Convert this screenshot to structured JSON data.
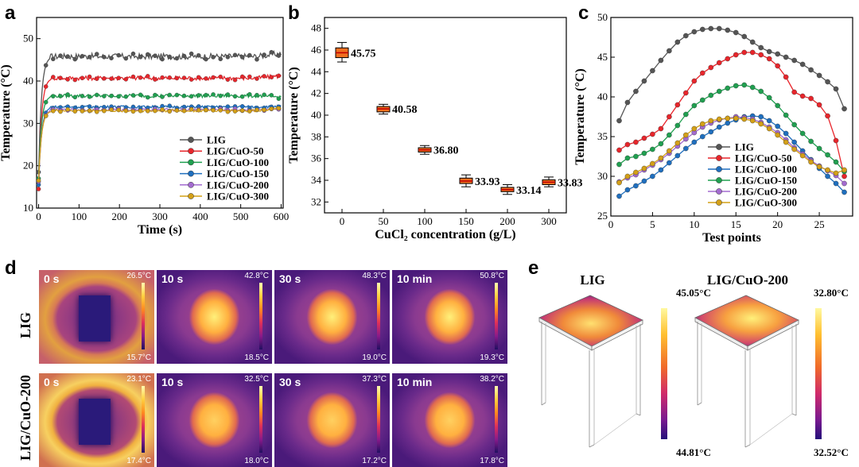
{
  "panel_labels": {
    "a": "a",
    "b": "b",
    "c": "c",
    "d": "d",
    "e": "e"
  },
  "colors": {
    "LIG": "#555555",
    "LIG/CuO-50": "#e8252b",
    "LIG/CuO-100": "#20a050",
    "LIG/CuO-150": "#1f6fbf",
    "LIG/CuO-200": "#a36bd0",
    "LIG/CuO-300": "#d4a017"
  },
  "chart_data": [
    {
      "id": "a",
      "type": "line",
      "xlabel": "Time (s)",
      "ylabel": "Temperature (°C)",
      "xlim": [
        -5,
        605
      ],
      "ylim": [
        10,
        55
      ],
      "xticks": [
        0,
        100,
        200,
        300,
        400,
        500,
        600
      ],
      "yticks": [
        10,
        20,
        30,
        40,
        50
      ],
      "yticks_labels": [
        "10",
        "20",
        "30",
        "40",
        "50"
      ],
      "legend": [
        "LIG",
        "LIG/CuO-50",
        "LIG/CuO-100",
        "LIG/CuO-150",
        "LIG/CuO-200",
        "LIG/CuO-300"
      ],
      "series": [
        {
          "name": "LIG",
          "start": 18.5,
          "plateau": 45.8,
          "noise": 0.7,
          "end": 46.5
        },
        {
          "name": "LIG/CuO-50",
          "start": 14.5,
          "plateau": 40.7,
          "noise": 0.5,
          "end": 41.2
        },
        {
          "name": "LIG/CuO-100",
          "start": 17.0,
          "plateau": 36.5,
          "noise": 0.4,
          "end": 36.2
        },
        {
          "name": "LIG/CuO-150",
          "start": 15.5,
          "plateau": 33.9,
          "noise": 0.3,
          "end": 34.0
        },
        {
          "name": "LIG/CuO-200",
          "start": 16.2,
          "plateau": 33.2,
          "noise": 0.3,
          "end": 33.1
        },
        {
          "name": "LIG/CuO-300",
          "start": 16.5,
          "plateau": 33.0,
          "noise": 0.3,
          "end": 33.8
        }
      ]
    },
    {
      "id": "b",
      "type": "box",
      "xlabel": "CuCl₂ concentration (g/L)",
      "ylabel": "Temperature (°C)",
      "xlim": [
        -30,
        330
      ],
      "ylim": [
        31,
        49
      ],
      "xticks": [
        0,
        50,
        100,
        150,
        200,
        300
      ],
      "yticks": [
        32,
        34,
        36,
        38,
        40,
        42,
        44,
        46,
        48
      ],
      "boxes": [
        {
          "x": 0,
          "mean": 45.75,
          "label": "45.75",
          "q1": 45.3,
          "q3": 46.2,
          "min": 44.9,
          "max": 46.7
        },
        {
          "x": 50,
          "mean": 40.58,
          "label": "40.58",
          "q1": 40.3,
          "q3": 40.8,
          "min": 40.1,
          "max": 41.0
        },
        {
          "x": 100,
          "mean": 36.8,
          "label": "36.80",
          "q1": 36.6,
          "q3": 37.0,
          "min": 36.4,
          "max": 37.2
        },
        {
          "x": 150,
          "mean": 33.93,
          "label": "33.93",
          "q1": 33.7,
          "q3": 34.2,
          "min": 33.4,
          "max": 34.5
        },
        {
          "x": 200,
          "mean": 33.14,
          "label": "33.14",
          "q1": 32.95,
          "q3": 33.35,
          "min": 32.7,
          "max": 33.6
        },
        {
          "x": 300,
          "mean": 33.83,
          "label": "33.83",
          "q1": 33.6,
          "q3": 34.05,
          "min": 33.4,
          "max": 34.3
        }
      ]
    },
    {
      "id": "c",
      "type": "line",
      "xlabel": "Test points",
      "ylabel": "Temperature (°C)",
      "xlim": [
        0,
        29
      ],
      "ylim": [
        25,
        50
      ],
      "xticks": [
        0,
        5,
        10,
        15,
        20,
        25
      ],
      "yticks": [
        25,
        30,
        35,
        40,
        45,
        50
      ],
      "legend": [
        "LIG",
        "LIG/CuO-50",
        "LIG/CuO-100",
        "LIG/CuO-150",
        "LIG/CuO-200",
        "LIG/CuO-300"
      ],
      "legend_colors": [
        "#555555",
        "#e8252b",
        "#1f6fbf",
        "#20a050",
        "#a36bd0",
        "#d4a017"
      ],
      "series": [
        {
          "name": "LIG",
          "color": "#555555",
          "values": [
            37.0,
            39.3,
            40.7,
            42.0,
            43.3,
            44.6,
            45.8,
            46.9,
            47.7,
            48.2,
            48.5,
            48.6,
            48.6,
            48.4,
            48.1,
            47.6,
            46.9,
            46.2,
            45.7,
            45.4,
            45.0,
            44.6,
            44.1,
            43.4,
            42.7,
            41.9,
            41.0,
            38.5
          ]
        },
        {
          "name": "LIG/CuO-50",
          "color": "#e8252b",
          "values": [
            33.3,
            34.0,
            34.3,
            34.8,
            35.3,
            36.0,
            37.5,
            39.0,
            40.5,
            42.0,
            43.0,
            43.7,
            44.3,
            44.8,
            45.3,
            45.6,
            45.6,
            45.3,
            44.8,
            43.9,
            42.5,
            40.6,
            40.1,
            39.8,
            39.0,
            37.6,
            34.5,
            30.0
          ]
        },
        {
          "name": "LIG/CuO-150",
          "color": "#20a050",
          "values": [
            31.5,
            32.3,
            32.5,
            32.9,
            33.4,
            34.1,
            35.2,
            36.4,
            37.8,
            38.9,
            39.6,
            40.2,
            40.7,
            41.1,
            41.4,
            41.5,
            41.2,
            40.7,
            39.9,
            38.9,
            37.7,
            36.5,
            35.4,
            34.4,
            33.5,
            32.7,
            31.8,
            30.6
          ]
        },
        {
          "name": "LIG/CuO-100",
          "color": "#1f6fbf",
          "values": [
            27.5,
            28.3,
            28.8,
            29.4,
            30.0,
            30.8,
            31.7,
            32.6,
            33.5,
            34.3,
            35.0,
            35.6,
            36.2,
            36.7,
            37.1,
            37.5,
            37.6,
            37.5,
            37.0,
            36.3,
            35.4,
            34.3,
            33.2,
            32.1,
            31.0,
            30.0,
            29.1,
            28.0
          ]
        },
        {
          "name": "LIG/CuO-200",
          "color": "#a36bd0",
          "values": [
            29.3,
            29.8,
            30.2,
            30.8,
            31.4,
            32.1,
            32.9,
            33.8,
            34.7,
            35.5,
            36.2,
            36.7,
            37.1,
            37.3,
            37.5,
            37.4,
            37.2,
            36.8,
            36.2,
            35.5,
            34.6,
            33.6,
            32.8,
            32.0,
            31.3,
            30.7,
            30.1,
            29.1
          ]
        },
        {
          "name": "LIG/CuO-300",
          "color": "#d4a017",
          "values": [
            29.2,
            30.0,
            30.5,
            31.0,
            31.6,
            32.3,
            33.2,
            34.2,
            35.2,
            36.0,
            36.6,
            37.0,
            37.2,
            37.3,
            37.3,
            37.2,
            37.0,
            36.6,
            36.0,
            35.2,
            34.3,
            33.4,
            32.6,
            31.8,
            31.2,
            30.8,
            30.4,
            30.8
          ]
        }
      ]
    }
  ],
  "ir_images": {
    "row_labels": [
      "LIG",
      "LIG/CuO-200"
    ],
    "rows": [
      [
        {
          "time": "0 s",
          "max": "26.5°C",
          "min": "15.7°C"
        },
        {
          "time": "10 s",
          "max": "42.8°C",
          "min": "18.5°C"
        },
        {
          "time": "30 s",
          "max": "48.3°C",
          "min": "19.0°C"
        },
        {
          "time": "10 min",
          "max": "50.8°C",
          "min": "19.3°C"
        }
      ],
      [
        {
          "time": "0 s",
          "max": "23.1°C",
          "min": "17.4°C"
        },
        {
          "time": "10 s",
          "max": "32.5°C",
          "min": "18.0°C"
        },
        {
          "time": "30 s",
          "max": "37.3°C",
          "min": "17.2°C"
        },
        {
          "time": "10 min",
          "max": "38.2°C",
          "min": "17.8°C"
        }
      ]
    ]
  },
  "simulation": [
    {
      "title": "LIG",
      "max": "45.05°C",
      "min": "44.81°C"
    },
    {
      "title": "LIG/CuO-200",
      "max": "32.80°C",
      "min": "32.52°C"
    }
  ]
}
